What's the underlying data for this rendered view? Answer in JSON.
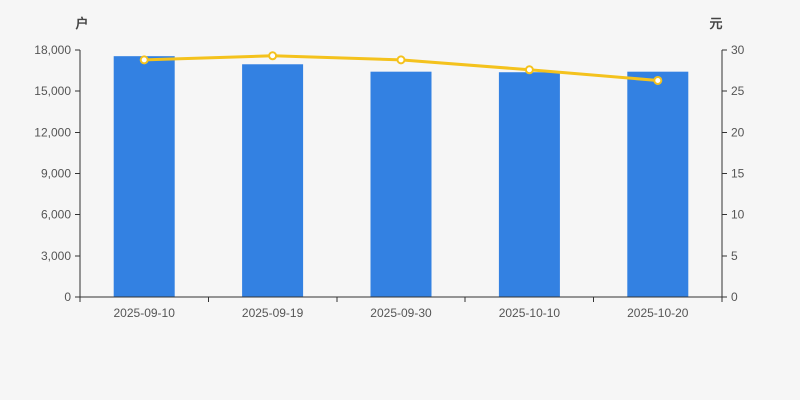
{
  "colors": {
    "background": "#f6f6f6",
    "axis_line": "#333333",
    "tick_text": "#555555",
    "axis_name_text": "#444444",
    "bar_blue": "#3381e2",
    "line_gold": "#f4c21d",
    "marker_fill": "#ffffff"
  },
  "chart_data": {
    "type": "bar",
    "subtype": "dual-axis bar + line, no gridlines, no legend, no title",
    "title": "",
    "categories": [
      "2025-09-10",
      "2025-09-19",
      "2025-09-30",
      "2025-10-10",
      "2025-10-20"
    ],
    "series": [
      {
        "name": "户",
        "type": "bar",
        "axis": "left",
        "color": "#3381e2",
        "values": [
          17550,
          16960,
          16420,
          16380,
          16420
        ]
      },
      {
        "name": "元",
        "type": "line",
        "axis": "right",
        "color": "#f4c21d",
        "marker_fill": "#ffffff",
        "values": [
          28.8,
          29.3,
          28.8,
          27.6,
          26.3
        ]
      }
    ],
    "left_axis": {
      "name": "户",
      "min": 0,
      "max": 18000,
      "step": 3000,
      "tick_labels": [
        "0",
        "3,000",
        "6,000",
        "9,000",
        "12,000",
        "15,000",
        "18,000"
      ]
    },
    "right_axis": {
      "name": "元",
      "min": 0,
      "max": 30,
      "step": 5,
      "tick_labels": [
        "0",
        "5",
        "10",
        "15",
        "20",
        "25",
        "30"
      ]
    },
    "x_axis": {
      "tick_labels": [
        "2025-09-10",
        "2025-09-19",
        "2025-09-30",
        "2025-10-10",
        "2025-10-20"
      ]
    },
    "grid": false,
    "legend": "none"
  }
}
